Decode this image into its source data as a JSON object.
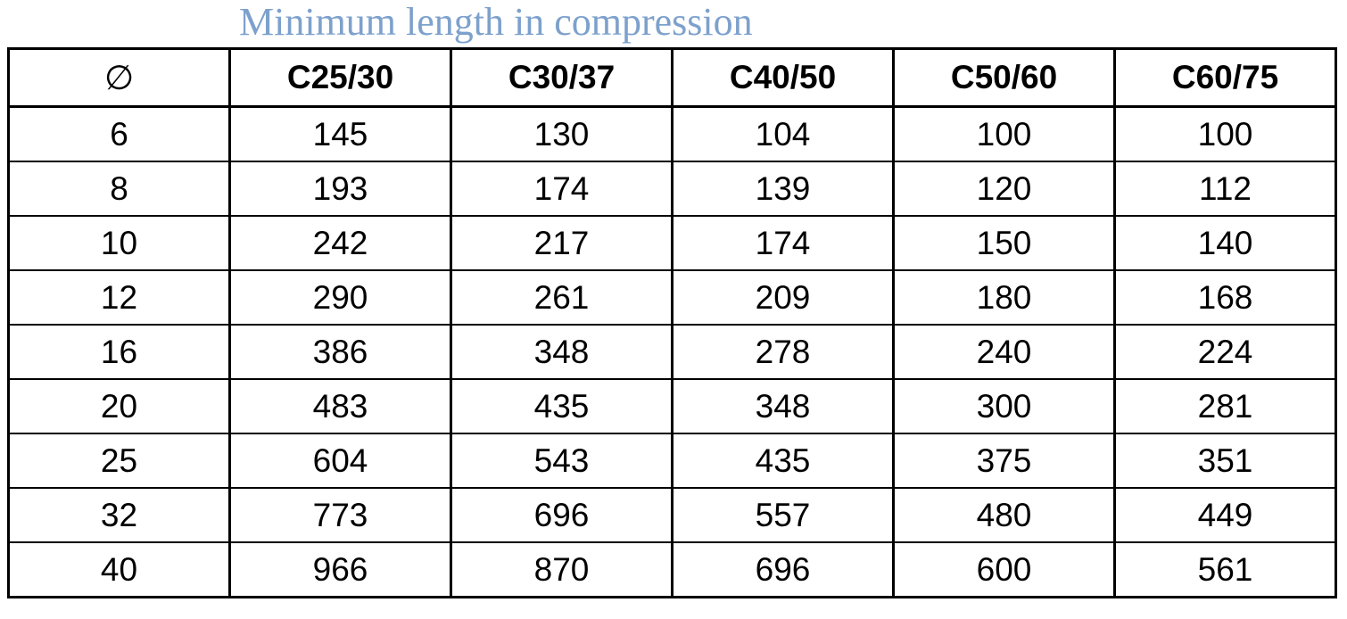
{
  "title": "Minimum length in compression",
  "table": {
    "header": [
      "∅",
      "C25/30",
      "C30/37",
      "C40/50",
      "C50/60",
      "C60/75"
    ],
    "rows": [
      [
        "6",
        "145",
        "130",
        "104",
        "100",
        "100"
      ],
      [
        "8",
        "193",
        "174",
        "139",
        "120",
        "112"
      ],
      [
        "10",
        "242",
        "217",
        "174",
        "150",
        "140"
      ],
      [
        "12",
        "290",
        "261",
        "209",
        "180",
        "168"
      ],
      [
        "16",
        "386",
        "348",
        "278",
        "240",
        "224"
      ],
      [
        "20",
        "483",
        "435",
        "348",
        "300",
        "281"
      ],
      [
        "25",
        "604",
        "543",
        "435",
        "375",
        "351"
      ],
      [
        "32",
        "773",
        "696",
        "557",
        "480",
        "449"
      ],
      [
        "40",
        "966",
        "870",
        "696",
        "600",
        "561"
      ]
    ]
  }
}
